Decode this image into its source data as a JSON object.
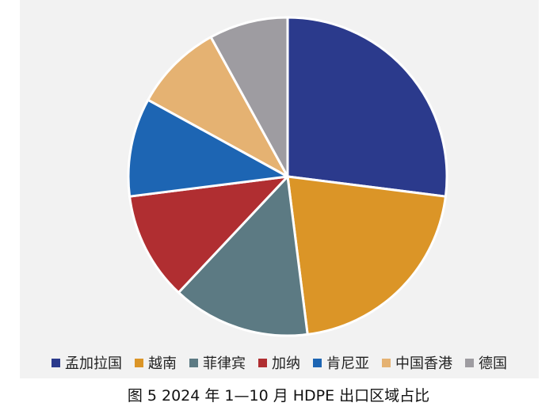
{
  "chart_data": {
    "type": "pie",
    "title": "图 5  2024 年 1—10 月 HDPE 出口区域占比",
    "categories": [
      "孟加拉国",
      "越南",
      "菲律宾",
      "加纳",
      "肯尼亚",
      "中国香港",
      "德国"
    ],
    "values": [
      27,
      21,
      14,
      11,
      10,
      9,
      8
    ],
    "colors": [
      "#2b3a8c",
      "#db9527",
      "#5c7a83",
      "#b02e31",
      "#1d65b3",
      "#e5b272",
      "#9e9ca1"
    ],
    "legend_position": "bottom",
    "start_angle_deg": 0,
    "direction": "clockwise"
  }
}
